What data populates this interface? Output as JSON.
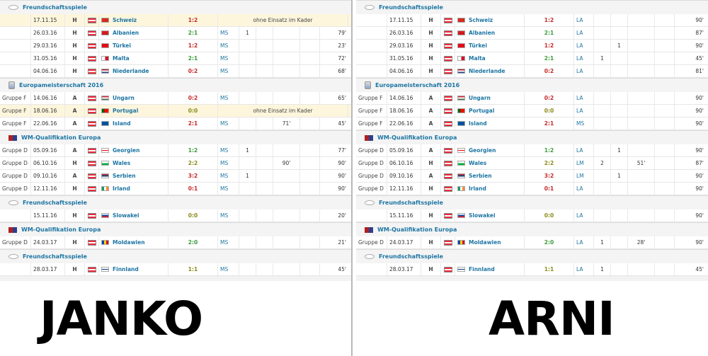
{
  "colors": {
    "link": "#1d75a3",
    "win": "#3a9b3a",
    "draw": "#8a8a1a",
    "loss": "#c62828",
    "highlight": "#fdf6dc"
  },
  "captions": {
    "left": "JANKO",
    "right": "ARNI"
  },
  "left": {
    "sections": [
      {
        "competition": "Freundschaftsspiele",
        "icon": "friendly-icon",
        "rows": [
          {
            "group": "",
            "date": "17.11.15",
            "venue": "H",
            "opponent": "Schweiz",
            "score": "1:2",
            "result": "loss",
            "note": "ohne Einsatz im Kader",
            "highlight": true
          },
          {
            "group": "",
            "date": "26.03.16",
            "venue": "H",
            "opponent": "Albanien",
            "score": "2:1",
            "result": "win",
            "pos": "MS",
            "goals": "1",
            "assists": "",
            "subin": "",
            "subout": "",
            "minutes": "79'"
          },
          {
            "group": "",
            "date": "29.03.16",
            "venue": "H",
            "opponent": "Türkei",
            "score": "1:2",
            "result": "loss",
            "pos": "MS",
            "goals": "",
            "assists": "",
            "subin": "",
            "subout": "",
            "minutes": "23'"
          },
          {
            "group": "",
            "date": "31.05.16",
            "venue": "H",
            "opponent": "Malta",
            "score": "2:1",
            "result": "win",
            "pos": "MS",
            "goals": "",
            "assists": "",
            "subin": "",
            "subout": "",
            "minutes": "72'"
          },
          {
            "group": "",
            "date": "04.06.16",
            "venue": "H",
            "opponent": "Niederlande",
            "score": "0:2",
            "result": "loss",
            "pos": "MS",
            "goals": "",
            "assists": "",
            "subin": "",
            "subout": "",
            "minutes": "68'"
          }
        ]
      },
      {
        "competition": "Europameisterschaft 2016",
        "icon": "euro-icon",
        "rows": [
          {
            "group": "Gruppe F",
            "date": "14.06.16",
            "venue": "A",
            "opponent": "Ungarn",
            "score": "0:2",
            "result": "loss",
            "pos": "MS",
            "goals": "",
            "assists": "",
            "subin": "",
            "subout": "",
            "minutes": "65'"
          },
          {
            "group": "Gruppe F",
            "date": "18.06.16",
            "venue": "A",
            "opponent": "Portugal",
            "score": "0:0",
            "result": "draw",
            "note": "ohne Einsatz im Kader",
            "highlight": true
          },
          {
            "group": "Gruppe F",
            "date": "22.06.16",
            "venue": "A",
            "opponent": "Island",
            "score": "2:1",
            "result": "loss",
            "pos": "MS",
            "goals": "",
            "assists": "",
            "subin": "71'",
            "subout": "",
            "minutes": "45'"
          }
        ]
      },
      {
        "competition": "WM-Qualifikation Europa",
        "icon": "wm-icon",
        "rows": [
          {
            "group": "Gruppe D",
            "date": "05.09.16",
            "venue": "A",
            "opponent": "Georgien",
            "score": "1:2",
            "result": "win",
            "pos": "MS",
            "goals": "1",
            "assists": "",
            "subin": "",
            "subout": "",
            "minutes": "77'"
          },
          {
            "group": "Gruppe D",
            "date": "06.10.16",
            "venue": "H",
            "opponent": "Wales",
            "score": "2:2",
            "result": "draw",
            "pos": "MS",
            "goals": "",
            "assists": "",
            "subin": "90'",
            "subout": "",
            "minutes": "90'"
          },
          {
            "group": "Gruppe D",
            "date": "09.10.16",
            "venue": "A",
            "opponent": "Serbien",
            "score": "3:2",
            "result": "loss",
            "pos": "MS",
            "goals": "1",
            "assists": "",
            "subin": "",
            "subout": "",
            "minutes": "90'"
          },
          {
            "group": "Gruppe D",
            "date": "12.11.16",
            "venue": "H",
            "opponent": "Irland",
            "score": "0:1",
            "result": "loss",
            "pos": "MS",
            "goals": "",
            "assists": "",
            "subin": "",
            "subout": "",
            "minutes": "90'"
          }
        ]
      },
      {
        "competition": "Freundschaftsspiele",
        "icon": "friendly-icon",
        "rows": [
          {
            "group": "",
            "date": "15.11.16",
            "venue": "H",
            "opponent": "Slowakei",
            "score": "0:0",
            "result": "draw",
            "pos": "MS",
            "goals": "",
            "assists": "",
            "subin": "",
            "subout": "",
            "minutes": "20'"
          }
        ]
      },
      {
        "competition": "WM-Qualifikation Europa",
        "icon": "wm-icon",
        "rows": [
          {
            "group": "Gruppe D",
            "date": "24.03.17",
            "venue": "H",
            "opponent": "Moldawien",
            "score": "2:0",
            "result": "win",
            "pos": "MS",
            "goals": "",
            "assists": "",
            "subin": "",
            "subout": "",
            "minutes": "21'"
          }
        ]
      },
      {
        "competition": "Freundschaftsspiele",
        "icon": "friendly-icon",
        "rows": [
          {
            "group": "",
            "date": "28.03.17",
            "venue": "H",
            "opponent": "Finnland",
            "score": "1:1",
            "result": "draw",
            "pos": "MS",
            "goals": "",
            "assists": "",
            "subin": "",
            "subout": "",
            "minutes": "45'"
          }
        ]
      }
    ]
  },
  "right": {
    "sections": [
      {
        "competition": "Freundschaftsspiele",
        "icon": "friendly-icon",
        "rows": [
          {
            "group": "",
            "date": "17.11.15",
            "venue": "H",
            "opponent": "Schweiz",
            "score": "1:2",
            "result": "loss",
            "pos": "LA",
            "goals": "",
            "assists": "",
            "subin": "",
            "subout": "",
            "minutes": "90'"
          },
          {
            "group": "",
            "date": "26.03.16",
            "venue": "H",
            "opponent": "Albanien",
            "score": "2:1",
            "result": "win",
            "pos": "LA",
            "goals": "",
            "assists": "",
            "subin": "",
            "subout": "",
            "minutes": "87'"
          },
          {
            "group": "",
            "date": "29.03.16",
            "venue": "H",
            "opponent": "Türkei",
            "score": "1:2",
            "result": "loss",
            "pos": "LA",
            "goals": "",
            "assists": "1",
            "subin": "",
            "subout": "",
            "minutes": "90'"
          },
          {
            "group": "",
            "date": "31.05.16",
            "venue": "H",
            "opponent": "Malta",
            "score": "2:1",
            "result": "win",
            "pos": "LA",
            "goals": "1",
            "assists": "",
            "subin": "",
            "subout": "",
            "minutes": "45'"
          },
          {
            "group": "",
            "date": "04.06.16",
            "venue": "H",
            "opponent": "Niederlande",
            "score": "0:2",
            "result": "loss",
            "pos": "LA",
            "goals": "",
            "assists": "",
            "subin": "",
            "subout": "",
            "minutes": "81'"
          }
        ]
      },
      {
        "competition": "Europameisterschaft 2016",
        "icon": "euro-icon",
        "rows": [
          {
            "group": "Gruppe F",
            "date": "14.06.16",
            "venue": "A",
            "opponent": "Ungarn",
            "score": "0:2",
            "result": "loss",
            "pos": "LA",
            "goals": "",
            "assists": "",
            "subin": "",
            "subout": "",
            "minutes": "90'"
          },
          {
            "group": "Gruppe F",
            "date": "18.06.16",
            "venue": "A",
            "opponent": "Portugal",
            "score": "0:0",
            "result": "draw",
            "pos": "LA",
            "goals": "",
            "assists": "",
            "subin": "",
            "subout": "",
            "minutes": "90'"
          },
          {
            "group": "Gruppe F",
            "date": "22.06.16",
            "venue": "A",
            "opponent": "Island",
            "score": "2:1",
            "result": "loss",
            "pos": "MS",
            "goals": "",
            "assists": "",
            "subin": "",
            "subout": "",
            "minutes": "90'"
          }
        ]
      },
      {
        "competition": "WM-Qualifikation Europa",
        "icon": "wm-icon",
        "rows": [
          {
            "group": "Gruppe D",
            "date": "05.09.16",
            "venue": "A",
            "opponent": "Georgien",
            "score": "1:2",
            "result": "win",
            "pos": "LA",
            "goals": "",
            "assists": "1",
            "subin": "",
            "subout": "",
            "minutes": "90'"
          },
          {
            "group": "Gruppe D",
            "date": "06.10.16",
            "venue": "H",
            "opponent": "Wales",
            "score": "2:2",
            "result": "draw",
            "pos": "LM",
            "goals": "2",
            "assists": "",
            "subin": "51'",
            "subout": "",
            "minutes": "87'"
          },
          {
            "group": "Gruppe D",
            "date": "09.10.16",
            "venue": "A",
            "opponent": "Serbien",
            "score": "3:2",
            "result": "loss",
            "pos": "LM",
            "goals": "",
            "assists": "1",
            "subin": "",
            "subout": "",
            "minutes": "90'"
          },
          {
            "group": "Gruppe D",
            "date": "12.11.16",
            "venue": "H",
            "opponent": "Irland",
            "score": "0:1",
            "result": "loss",
            "pos": "LA",
            "goals": "",
            "assists": "",
            "subin": "",
            "subout": "",
            "minutes": "90'"
          }
        ]
      },
      {
        "competition": "Freundschaftsspiele",
        "icon": "friendly-icon",
        "rows": [
          {
            "group": "",
            "date": "15.11.16",
            "venue": "H",
            "opponent": "Slowakei",
            "score": "0:0",
            "result": "draw",
            "pos": "LA",
            "goals": "",
            "assists": "",
            "subin": "",
            "subout": "",
            "minutes": "90'"
          }
        ]
      },
      {
        "competition": "WM-Qualifikation Europa",
        "icon": "wm-icon",
        "rows": [
          {
            "group": "Gruppe D",
            "date": "24.03.17",
            "venue": "H",
            "opponent": "Moldawien",
            "score": "2:0",
            "result": "win",
            "pos": "LA",
            "goals": "1",
            "assists": "",
            "subin": "28'",
            "subout": "",
            "minutes": "90'"
          }
        ]
      },
      {
        "competition": "Freundschaftsspiele",
        "icon": "friendly-icon",
        "rows": [
          {
            "group": "",
            "date": "28.03.17",
            "venue": "H",
            "opponent": "Finnland",
            "score": "1:1",
            "result": "draw",
            "pos": "LA",
            "goals": "1",
            "assists": "",
            "subin": "",
            "subout": "",
            "minutes": "45'"
          }
        ]
      }
    ]
  }
}
